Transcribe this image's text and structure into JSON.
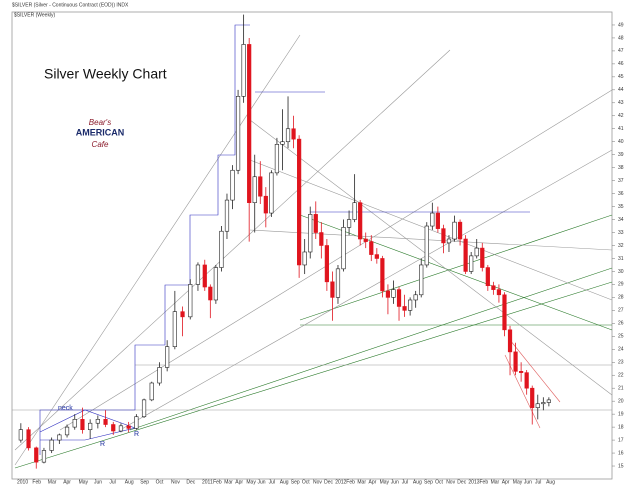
{
  "chart_data": {
    "type": "candlestick",
    "header": "$SILVER (Silver - Continuous Contract (EOD)) INDX",
    "subheader": "$SILVER (Weekly)",
    "title": "Silver Weekly Chart",
    "logo_top": "Bear's",
    "logo_mid": "AMERICAN",
    "logo_bottom": "Cafe",
    "annotations": [
      "neck",
      "R",
      "R"
    ],
    "categories": [
      "2010",
      "Feb",
      "Mar",
      "Apr",
      "May",
      "Jun",
      "Jul",
      "Aug",
      "Sep",
      "Oct",
      "Nov",
      "Dec",
      "2011",
      "Feb",
      "Mar",
      "Apr",
      "May",
      "Jun",
      "Jul",
      "Aug",
      "Sep",
      "Oct",
      "Nov",
      "Dec",
      "2012",
      "Feb",
      "Mar",
      "Apr",
      "May",
      "Jun",
      "Jul",
      "Aug",
      "Sep",
      "Oct",
      "Nov",
      "Dec",
      "2013",
      "Feb",
      "Mar",
      "Apr",
      "May",
      "Jun",
      "Jul",
      "Aug"
    ],
    "candle_fields": [
      "open",
      "high",
      "low",
      "close"
    ],
    "up_color": "#ffffff",
    "down_color": "#e0141e",
    "candles": [
      [
        17.0,
        18.3,
        16.8,
        17.8
      ],
      [
        17.8,
        18.0,
        16.2,
        16.4
      ],
      [
        16.4,
        16.5,
        14.8,
        15.3
      ],
      [
        15.3,
        16.4,
        15.2,
        16.2
      ],
      [
        16.2,
        17.2,
        16.0,
        17.0
      ],
      [
        17.0,
        17.5,
        16.7,
        17.4
      ],
      [
        17.4,
        18.2,
        17.2,
        18.0
      ],
      [
        18.0,
        19.0,
        17.8,
        18.6
      ],
      [
        18.6,
        19.5,
        17.5,
        17.8
      ],
      [
        17.8,
        18.6,
        17.1,
        18.3
      ],
      [
        18.3,
        18.9,
        17.9,
        18.6
      ],
      [
        18.6,
        19.3,
        18.0,
        18.2
      ],
      [
        18.2,
        18.4,
        17.4,
        17.7
      ],
      [
        17.7,
        18.3,
        17.6,
        18.1
      ],
      [
        18.1,
        18.4,
        17.6,
        17.9
      ],
      [
        17.9,
        19.0,
        17.8,
        18.8
      ],
      [
        18.8,
        20.2,
        18.7,
        20.1
      ],
      [
        20.1,
        21.5,
        20.0,
        21.4
      ],
      [
        21.4,
        23.0,
        21.2,
        22.6
      ],
      [
        22.6,
        24.7,
        22.3,
        24.2
      ],
      [
        24.2,
        28.5,
        24.0,
        26.9
      ],
      [
        26.9,
        27.3,
        25.0,
        26.5
      ],
      [
        26.5,
        29.4,
        26.3,
        29.0
      ],
      [
        29.0,
        30.7,
        28.5,
        30.5
      ],
      [
        30.5,
        30.9,
        28.5,
        28.8
      ],
      [
        28.8,
        29.0,
        26.4,
        27.8
      ],
      [
        27.8,
        30.5,
        27.5,
        30.3
      ],
      [
        30.3,
        33.5,
        30.0,
        33.1
      ],
      [
        33.1,
        36.0,
        32.5,
        35.5
      ],
      [
        35.5,
        38.2,
        34.8,
        37.8
      ],
      [
        37.8,
        44.0,
        37.5,
        43.5
      ],
      [
        43.5,
        49.8,
        43.0,
        47.5
      ],
      [
        47.5,
        48.0,
        32.3,
        35.3
      ],
      [
        35.3,
        39.0,
        33.0,
        37.3
      ],
      [
        37.3,
        38.5,
        35.2,
        35.8
      ],
      [
        35.8,
        36.5,
        33.4,
        34.5
      ],
      [
        34.5,
        37.8,
        34.2,
        37.6
      ],
      [
        37.6,
        40.3,
        37.4,
        39.8
      ],
      [
        39.8,
        42.5,
        37.8,
        40.0
      ],
      [
        40.0,
        43.5,
        39.5,
        41.0
      ],
      [
        41.0,
        42.0,
        39.5,
        40.2
      ],
      [
        40.2,
        40.5,
        29.5,
        30.5
      ],
      [
        30.5,
        32.5,
        29.8,
        31.5
      ],
      [
        31.5,
        35.0,
        31.0,
        34.4
      ],
      [
        34.4,
        35.4,
        32.5,
        33.0
      ],
      [
        33.0,
        33.8,
        31.0,
        32.0
      ],
      [
        32.0,
        32.5,
        28.5,
        29.2
      ],
      [
        29.2,
        30.0,
        26.2,
        28.0
      ],
      [
        28.0,
        30.5,
        27.5,
        30.2
      ],
      [
        30.2,
        34.0,
        30.0,
        33.4
      ],
      [
        33.4,
        34.7,
        32.8,
        34.0
      ],
      [
        34.0,
        37.5,
        33.8,
        35.3
      ],
      [
        35.3,
        35.5,
        32.0,
        32.5
      ],
      [
        32.5,
        33.0,
        31.8,
        32.3
      ],
      [
        32.3,
        32.8,
        30.8,
        31.3
      ],
      [
        31.3,
        31.8,
        30.6,
        31.0
      ],
      [
        31.0,
        31.2,
        28.0,
        28.5
      ],
      [
        28.5,
        29.0,
        26.7,
        28.0
      ],
      [
        28.0,
        29.3,
        27.5,
        28.6
      ],
      [
        28.6,
        28.8,
        26.2,
        27.3
      ],
      [
        27.3,
        28.2,
        26.5,
        27.0
      ],
      [
        27.0,
        28.0,
        26.6,
        27.8
      ],
      [
        27.8,
        28.5,
        27.2,
        28.2
      ],
      [
        28.2,
        31.0,
        28.0,
        30.5
      ],
      [
        30.5,
        33.8,
        30.3,
        33.5
      ],
      [
        33.5,
        35.3,
        33.2,
        34.5
      ],
      [
        34.5,
        35.0,
        33.0,
        33.3
      ],
      [
        33.3,
        33.6,
        31.4,
        32.2
      ],
      [
        32.2,
        32.8,
        31.5,
        32.5
      ],
      [
        32.5,
        34.3,
        32.3,
        33.8
      ],
      [
        33.8,
        34.0,
        32.0,
        32.5
      ],
      [
        32.5,
        32.8,
        29.8,
        30.0
      ],
      [
        30.0,
        31.5,
        29.8,
        31.2
      ],
      [
        31.2,
        32.5,
        31.0,
        31.8
      ],
      [
        31.8,
        32.2,
        30.0,
        30.3
      ],
      [
        30.3,
        30.5,
        28.5,
        28.9
      ],
      [
        28.9,
        29.2,
        28.2,
        28.6
      ],
      [
        28.6,
        29.0,
        27.6,
        28.2
      ],
      [
        28.2,
        28.4,
        25.0,
        25.5
      ],
      [
        25.5,
        25.8,
        22.0,
        23.8
      ],
      [
        23.8,
        24.5,
        22.0,
        22.3
      ],
      [
        22.3,
        23.0,
        21.5,
        22.2
      ],
      [
        22.2,
        22.4,
        20.5,
        21.0
      ],
      [
        21.0,
        21.2,
        18.2,
        19.5
      ],
      [
        19.5,
        20.5,
        18.6,
        19.8
      ],
      [
        19.8,
        20.3,
        19.3,
        19.9
      ],
      [
        19.9,
        20.3,
        19.6,
        20.1
      ]
    ],
    "ylim": [
      14,
      50
    ],
    "yticks": [
      15,
      16,
      17,
      18,
      19,
      20,
      21,
      22,
      23,
      24,
      25,
      26,
      27,
      28,
      29,
      30,
      31,
      32,
      33,
      34,
      35,
      36,
      37,
      38,
      39,
      40,
      41,
      42,
      43,
      44,
      45,
      46,
      47,
      48,
      49
    ],
    "y_axis_side": "right"
  }
}
